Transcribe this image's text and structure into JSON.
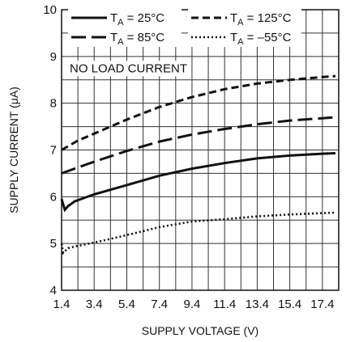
{
  "chart_data": {
    "type": "line",
    "xlabel": "SUPPLY VOLTAGE (V)",
    "ylabel": "SUPPLY CURRENT (μA)",
    "xlim": [
      1.4,
      18.4
    ],
    "ylim": [
      4,
      10
    ],
    "xticks": [
      1.4,
      3.4,
      5.4,
      7.4,
      9.4,
      11.4,
      13.4,
      15.4,
      17.4
    ],
    "yticks": [
      4,
      5,
      6,
      7,
      8,
      9,
      10
    ],
    "grid": true,
    "annotation": "NO LOAD CURRENT",
    "legend_position": "top",
    "series": [
      {
        "name_main": "T",
        "name_sub": "A",
        "name_rest": " = 25°C",
        "dash": "solid",
        "points": [
          [
            1.4,
            5.95
          ],
          [
            1.6,
            5.72
          ],
          [
            1.8,
            5.8
          ],
          [
            2.2,
            5.9
          ],
          [
            3.4,
            6.05
          ],
          [
            5.4,
            6.25
          ],
          [
            7.4,
            6.45
          ],
          [
            9.4,
            6.6
          ],
          [
            11.4,
            6.72
          ],
          [
            13.4,
            6.82
          ],
          [
            15.4,
            6.88
          ],
          [
            17.4,
            6.92
          ],
          [
            18.2,
            6.93
          ]
        ]
      },
      {
        "name_main": "T",
        "name_sub": "A",
        "name_rest": " = 125°C",
        "dash": "short-dash",
        "points": [
          [
            1.4,
            7.0
          ],
          [
            2.4,
            7.2
          ],
          [
            3.4,
            7.35
          ],
          [
            5.4,
            7.65
          ],
          [
            7.4,
            7.92
          ],
          [
            9.4,
            8.13
          ],
          [
            11.4,
            8.3
          ],
          [
            13.4,
            8.42
          ],
          [
            15.4,
            8.5
          ],
          [
            17.4,
            8.56
          ],
          [
            18.2,
            8.58
          ]
        ]
      },
      {
        "name_main": "T",
        "name_sub": "A",
        "name_rest": " = 85°C",
        "dash": "long-dash",
        "points": [
          [
            1.4,
            6.5
          ],
          [
            3.4,
            6.75
          ],
          [
            5.4,
            6.98
          ],
          [
            7.4,
            7.18
          ],
          [
            9.4,
            7.33
          ],
          [
            11.4,
            7.45
          ],
          [
            13.4,
            7.55
          ],
          [
            15.4,
            7.63
          ],
          [
            17.4,
            7.68
          ],
          [
            18.2,
            7.7
          ]
        ]
      },
      {
        "name_main": "T",
        "name_sub": "A",
        "name_rest": " = –55°C",
        "dash": "dotted",
        "points": [
          [
            1.4,
            5.0
          ],
          [
            1.5,
            4.8
          ],
          [
            1.8,
            4.9
          ],
          [
            2.4,
            4.95
          ],
          [
            3.4,
            5.02
          ],
          [
            5.4,
            5.18
          ],
          [
            7.4,
            5.35
          ],
          [
            9.4,
            5.47
          ],
          [
            11.4,
            5.52
          ],
          [
            13.4,
            5.58
          ],
          [
            15.4,
            5.62
          ],
          [
            17.4,
            5.65
          ],
          [
            18.2,
            5.66
          ]
        ]
      }
    ]
  }
}
